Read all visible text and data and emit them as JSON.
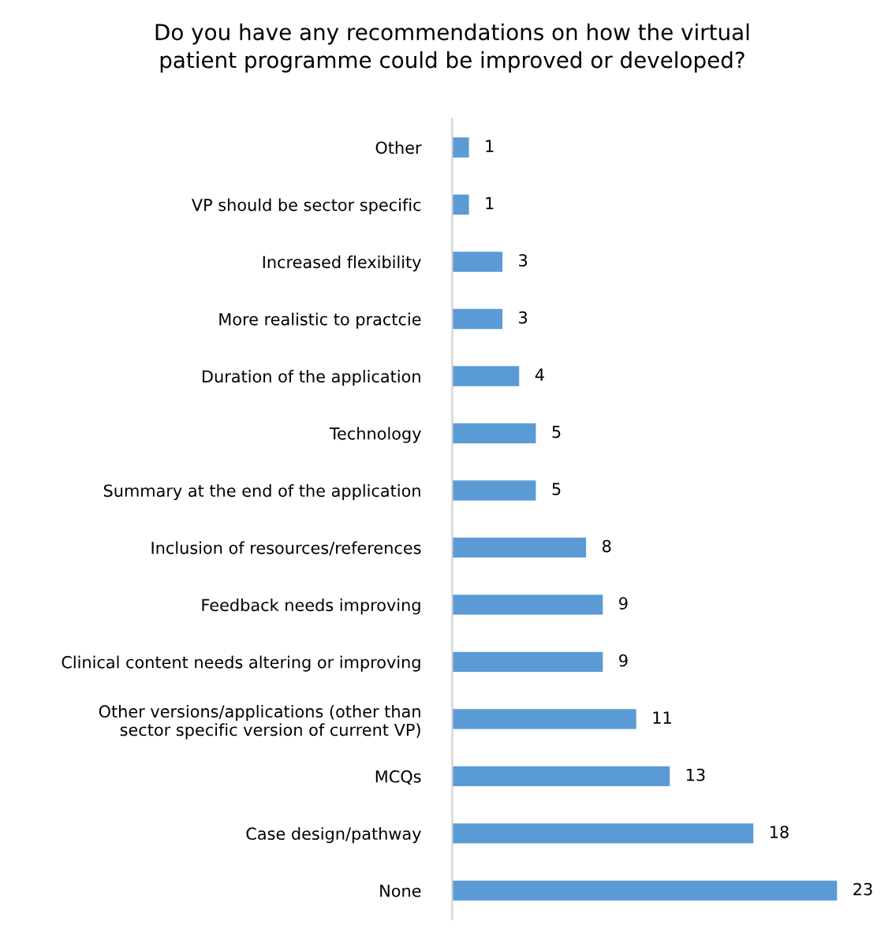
{
  "chart_data": {
    "type": "bar",
    "orientation": "horizontal",
    "title": "Do you have any recommendations on how the virtual\npatient programme could be improved or developed?",
    "categories": [
      "Other",
      "VP should be sector specific",
      "Increased flexibility",
      "More realistic to practcie",
      "Duration of the application",
      "Technology",
      "Summary at the end of the application",
      "Inclusion of resources/references",
      "Feedback needs improving",
      "Clinical content needs altering or improving",
      "Other versions/applications (other than\nsector specific version of current VP)",
      "MCQs",
      "Case design/pathway",
      "None"
    ],
    "values": [
      1,
      1,
      3,
      3,
      4,
      5,
      5,
      8,
      9,
      9,
      11,
      13,
      18,
      23
    ],
    "color": "#5b9bd5",
    "data_labels": true,
    "grid": false,
    "legend": false,
    "tick_labels": "y"
  }
}
